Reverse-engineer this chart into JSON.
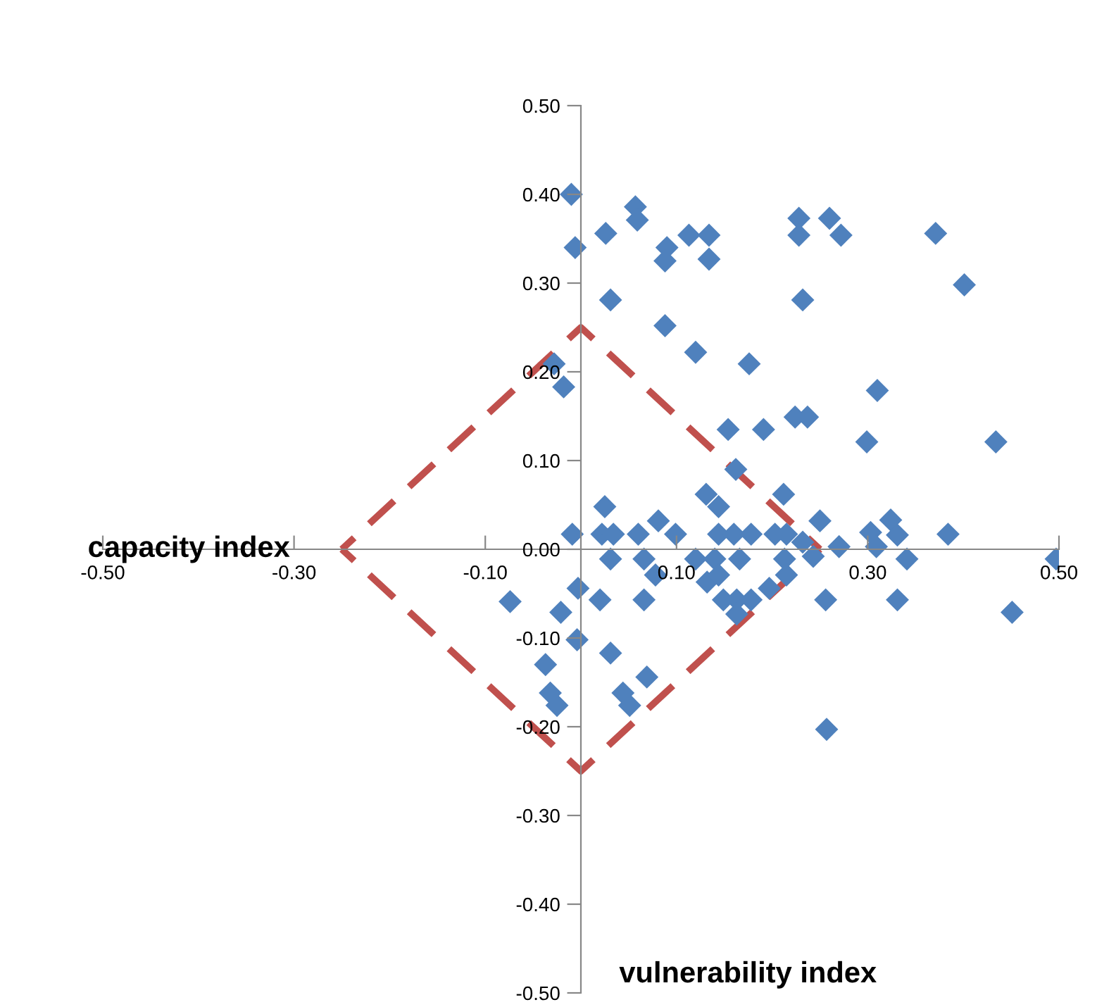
{
  "chart_data": {
    "type": "scatter",
    "xlabel": "capacity index",
    "ylabel": "vulnerability index",
    "xlim": [
      -0.5,
      0.5
    ],
    "ylim": [
      -0.5,
      0.5
    ],
    "xticks": [
      {
        "value": -0.5,
        "label": "-0.50"
      },
      {
        "value": -0.3,
        "label": "-0.30"
      },
      {
        "value": -0.1,
        "label": "-0.10"
      },
      {
        "value": 0.1,
        "label": "0.10"
      },
      {
        "value": 0.3,
        "label": "0.30"
      },
      {
        "value": 0.5,
        "label": "0.50"
      }
    ],
    "yticks": [
      {
        "value": -0.5,
        "label": "-0.50"
      },
      {
        "value": -0.4,
        "label": "-0.40"
      },
      {
        "value": -0.3,
        "label": "-0.30"
      },
      {
        "value": -0.2,
        "label": "-0.20"
      },
      {
        "value": -0.1,
        "label": "-0.10"
      },
      {
        "value": 0.0,
        "label": "0.00"
      },
      {
        "value": 0.1,
        "label": "0.10"
      },
      {
        "value": 0.2,
        "label": "0.20"
      },
      {
        "value": 0.3,
        "label": "0.30"
      },
      {
        "value": 0.4,
        "label": "0.40"
      },
      {
        "value": 0.5,
        "label": "0.50"
      }
    ],
    "grid": false,
    "legend": false,
    "marker": "diamond",
    "series": [
      {
        "color": "#4f81bd",
        "x": [
          -0.01,
          -0.006,
          0.026,
          0.057,
          0.059,
          0.09,
          0.088,
          0.113,
          0.134,
          0.134,
          0.031,
          0.088,
          0.12,
          0.176,
          -0.028,
          -0.018,
          0.228,
          0.228,
          0.26,
          0.272,
          0.371,
          0.401,
          0.232,
          0.31,
          0.224,
          0.237,
          0.299,
          0.434,
          0.25,
          0.324,
          0.331,
          0.384,
          0.303,
          0.309,
          0.27,
          0.341,
          0.497,
          0.256,
          0.331,
          0.451,
          0.257,
          0.154,
          0.191,
          0.162,
          0.131,
          0.144,
          0.212,
          0.025,
          -0.009,
          0.022,
          0.034,
          0.06,
          0.081,
          0.099,
          0.144,
          0.16,
          0.178,
          0.203,
          0.215,
          0.031,
          0.066,
          0.12,
          0.14,
          0.166,
          0.213,
          -0.003,
          0.02,
          0.078,
          0.066,
          0.132,
          0.144,
          0.149,
          0.163,
          0.163,
          0.178,
          0.197,
          0.215,
          -0.021,
          -0.004,
          -0.037,
          0.031,
          -0.032,
          -0.025,
          0.044,
          0.051,
          0.069,
          -0.074,
          0.232,
          0.243
        ],
        "values": [
          0.4,
          0.34,
          0.356,
          0.386,
          0.371,
          0.34,
          0.325,
          0.354,
          0.354,
          0.327,
          0.281,
          0.252,
          0.222,
          0.209,
          0.209,
          0.183,
          0.373,
          0.354,
          0.373,
          0.354,
          0.356,
          0.298,
          0.281,
          0.179,
          0.149,
          0.149,
          0.121,
          0.121,
          0.032,
          0.033,
          0.016,
          0.017,
          0.019,
          0.003,
          0.003,
          -0.011,
          -0.011,
          -0.057,
          -0.057,
          -0.071,
          -0.203,
          0.135,
          0.135,
          0.09,
          0.062,
          0.048,
          0.062,
          0.048,
          0.017,
          0.017,
          0.017,
          0.017,
          0.032,
          0.017,
          0.017,
          0.017,
          0.017,
          0.017,
          0.017,
          -0.011,
          -0.011,
          -0.011,
          -0.011,
          -0.011,
          -0.011,
          -0.044,
          -0.057,
          -0.029,
          -0.057,
          -0.037,
          -0.029,
          -0.057,
          -0.057,
          -0.073,
          -0.057,
          -0.044,
          -0.029,
          -0.071,
          -0.102,
          -0.13,
          -0.117,
          -0.162,
          -0.176,
          -0.162,
          -0.176,
          -0.144,
          -0.059,
          0.008,
          -0.008
        ]
      },
      {
        "type": "line",
        "color": "#c0504d",
        "marker": "none",
        "line_style": "dashed",
        "x": [
          -0.25,
          0.0,
          0.25
        ],
        "values": [
          0.0,
          0.25,
          0.0
        ]
      },
      {
        "type": "line",
        "color": "#c0504d",
        "marker": "none",
        "line_style": "dashed",
        "x": [
          -0.25,
          0.0,
          0.25
        ],
        "values": [
          0.0,
          -0.25,
          0.0
        ]
      }
    ]
  }
}
